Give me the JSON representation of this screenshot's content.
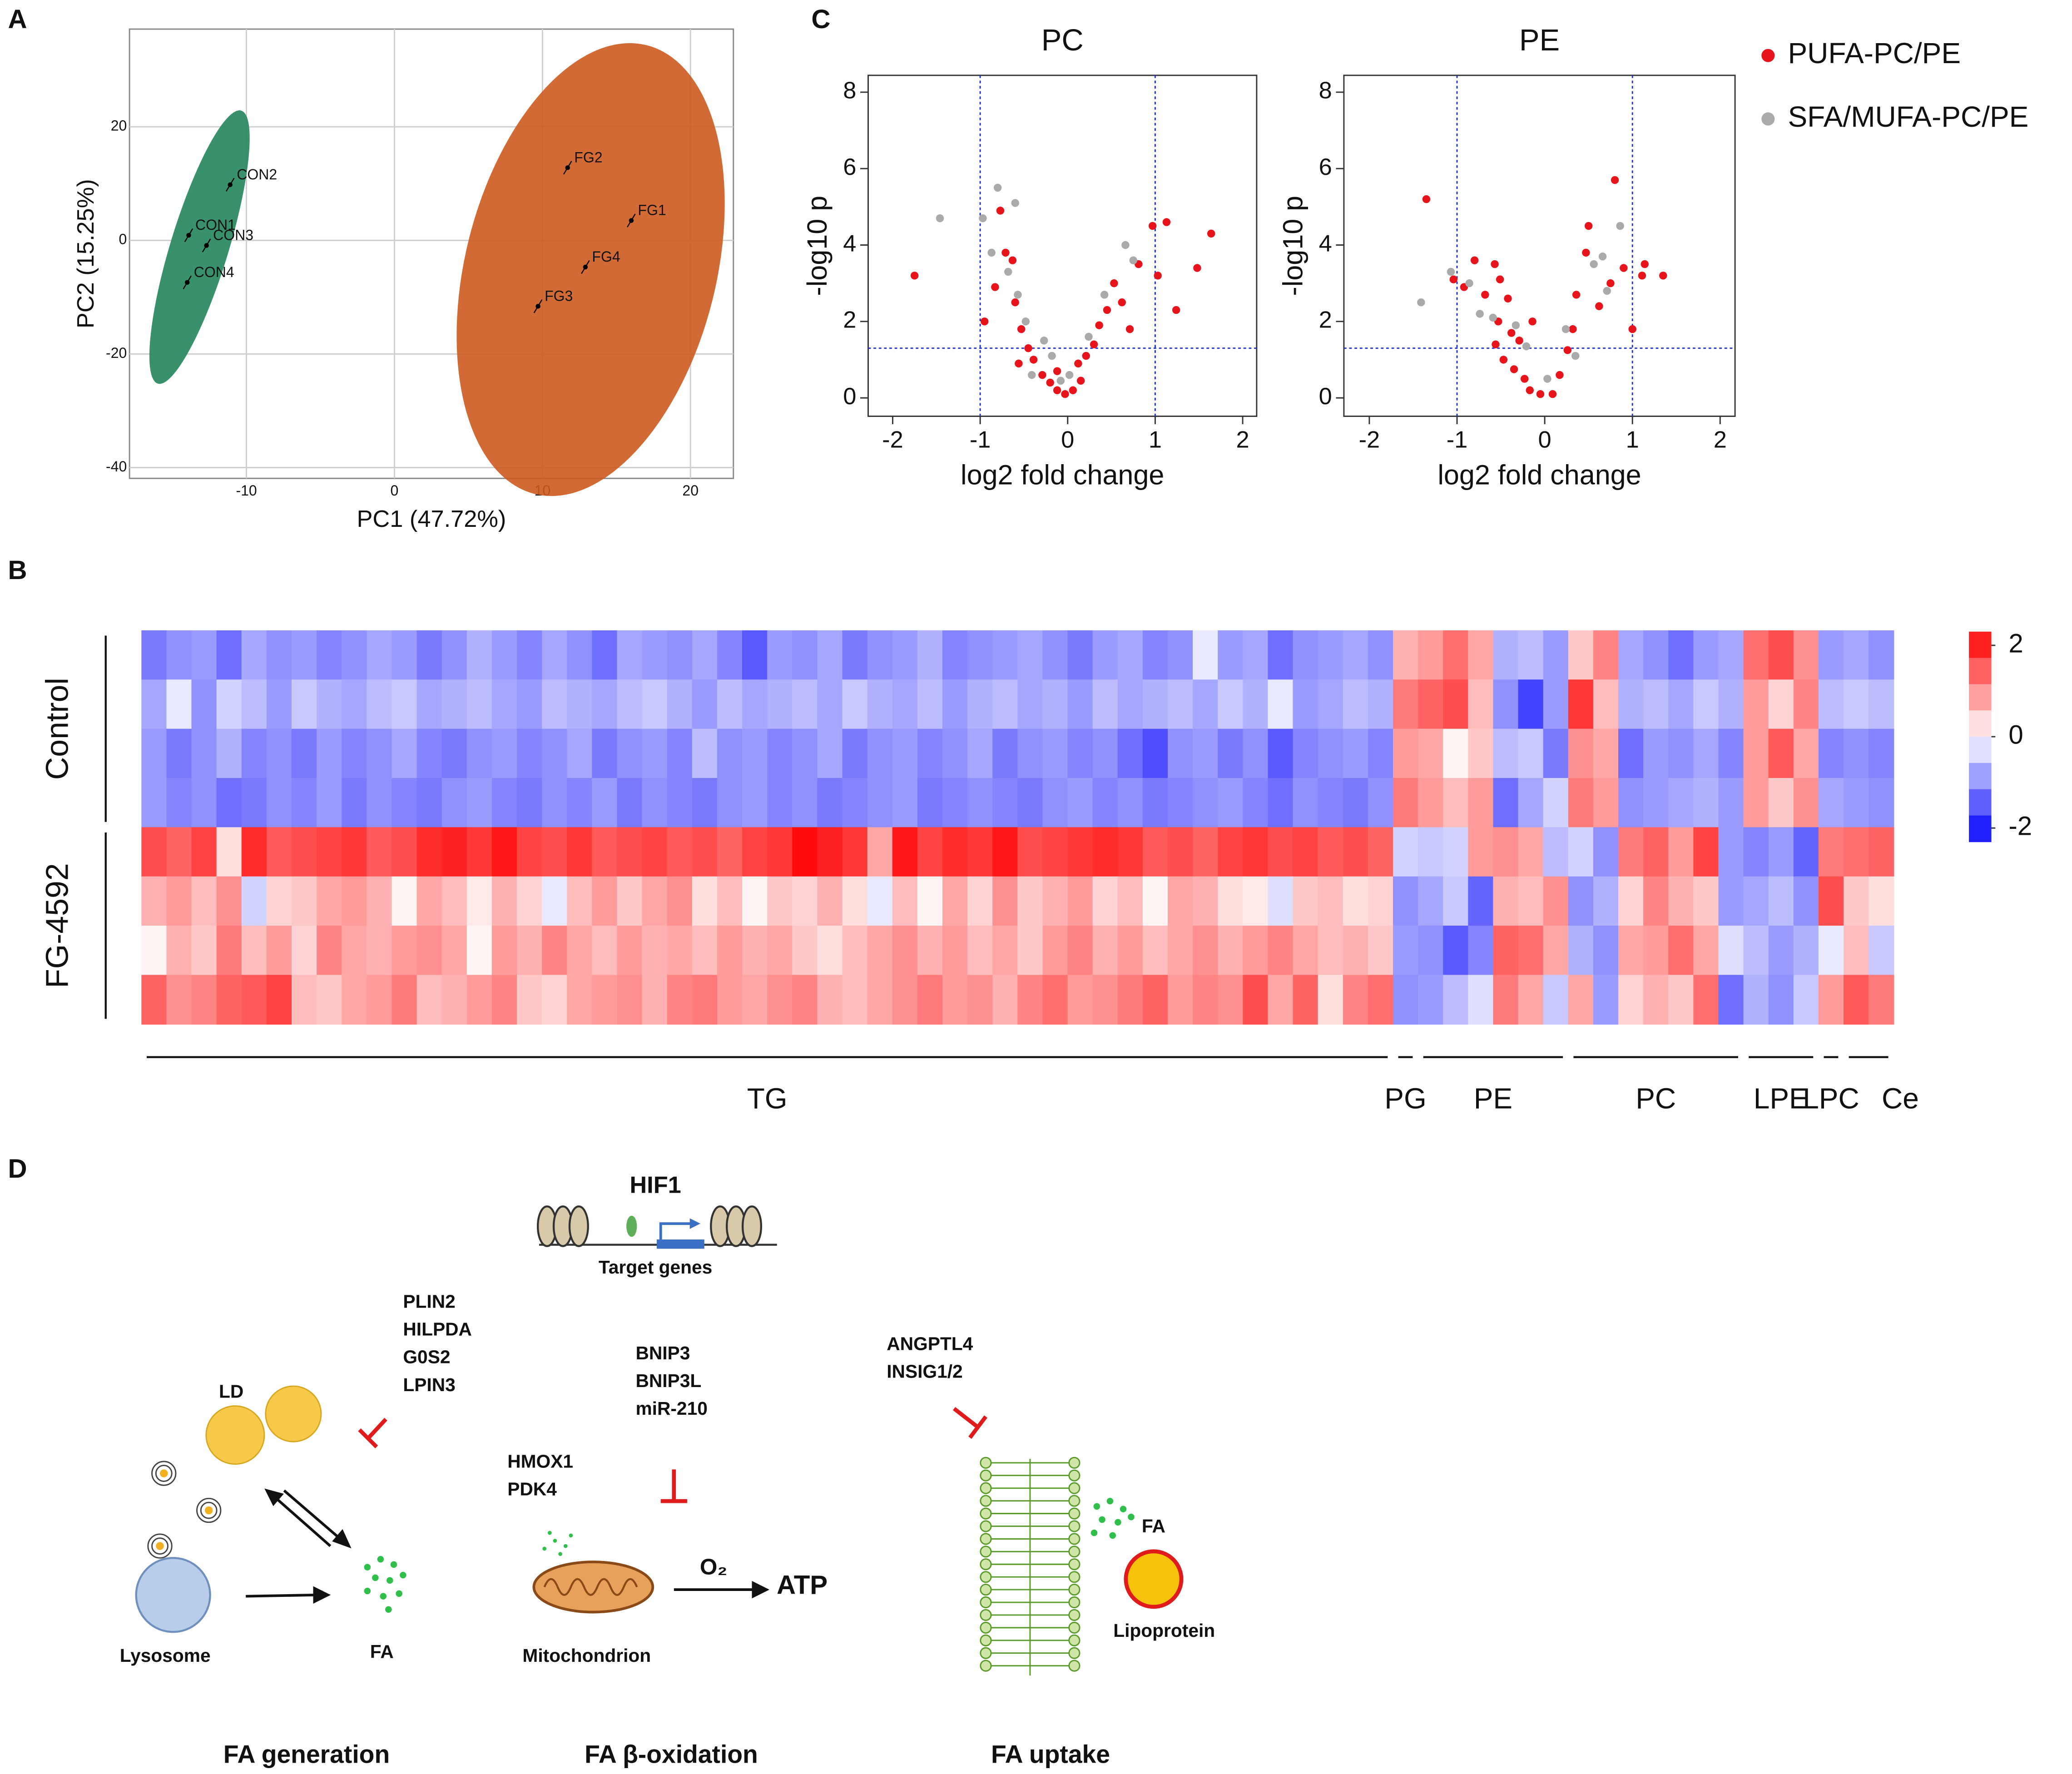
{
  "panel_labels": [
    "A",
    "B",
    "C",
    "D"
  ],
  "chart_data": [
    {
      "type": "scatter",
      "x_label": "PC1 (47.72%)",
      "y_label": "PC2 (15.25%)",
      "labels": [
        "CON1",
        "CON2",
        "CON3",
        "CON4",
        "FG1",
        "FG2",
        "FG3",
        "FG4"
      ],
      "x": [
        -13.9,
        -11.1,
        -12.7,
        -14.0,
        16.0,
        11.7,
        9.7,
        12.9
      ],
      "y": [
        0.9,
        9.8,
        -0.9,
        -7.4,
        3.5,
        12.8,
        -11.6,
        -4.7
      ],
      "color": "#000000",
      "xlim": [
        -17.9,
        22.9
      ],
      "ylim": [
        -41.9,
        37.2
      ],
      "xticks": [
        -10,
        0,
        10,
        20
      ],
      "yticks": [
        -40,
        -20,
        0,
        20
      ],
      "grid": true
    },
    {
      "type": "scatter",
      "title": "PC",
      "x_label": "log2 fold change",
      "y_label": "-log10 p",
      "series": [
        {
          "name": "PUFA-PC/PE",
          "color": "#e8141c",
          "x": [
            -1.75,
            -0.77,
            -0.95,
            -0.71,
            -0.63,
            -0.83,
            -0.6,
            -0.53,
            -0.45,
            -0.39,
            -0.29,
            -0.2,
            -0.12,
            -0.03,
            0.06,
            0.15,
            0.21,
            0.3,
            0.36,
            0.45,
            0.53,
            0.62,
            0.71,
            0.81,
            0.97,
            1.03,
            1.13,
            1.24,
            1.48,
            1.64,
            -0.56,
            -0.12,
            0.12
          ],
          "y": [
            3.2,
            4.9,
            2.0,
            3.8,
            3.6,
            2.9,
            2.5,
            1.8,
            1.3,
            1.0,
            0.6,
            0.4,
            0.2,
            0.1,
            0.2,
            0.45,
            1.1,
            1.4,
            1.9,
            2.3,
            3.0,
            2.5,
            1.8,
            3.5,
            4.5,
            3.2,
            4.6,
            2.3,
            3.4,
            4.3,
            0.9,
            0.7,
            0.9
          ]
        },
        {
          "name": "SFA/MUFA-PC/PE",
          "color": "#aaaaaa",
          "x": [
            -1.46,
            -0.97,
            -0.8,
            -0.6,
            -0.87,
            -0.68,
            -0.57,
            -0.48,
            -0.27,
            -0.18,
            0.02,
            0.24,
            0.42,
            0.66,
            0.75,
            -0.08,
            -0.41
          ],
          "y": [
            4.7,
            4.7,
            5.5,
            5.1,
            3.8,
            3.3,
            2.7,
            2.0,
            1.5,
            1.1,
            0.6,
            1.6,
            2.7,
            4.0,
            3.6,
            0.45,
            0.6
          ]
        }
      ],
      "vlines": [
        -1,
        1
      ],
      "hline": 1.3,
      "xlim": [
        -2.28,
        2.16
      ],
      "ylim": [
        -0.48,
        8.44
      ],
      "xticks": [
        -2,
        -1,
        0,
        1,
        2
      ],
      "yticks": [
        0,
        2,
        4,
        6,
        8
      ],
      "grid": false
    },
    {
      "type": "scatter",
      "title": "PE",
      "x_label": "log2 fold change",
      "y_label": "-log10 p",
      "series": [
        {
          "color": "#e8141c",
          "x": [
            -1.35,
            -1.04,
            -0.8,
            -0.57,
            -0.92,
            -0.68,
            -0.51,
            -0.42,
            -0.53,
            -0.38,
            -0.56,
            -0.47,
            -0.35,
            -0.23,
            -0.17,
            -0.05,
            0.09,
            0.17,
            0.26,
            0.32,
            0.36,
            0.47,
            0.5,
            0.62,
            0.8,
            0.75,
            0.9,
            1.0,
            1.11,
            1.14,
            1.35,
            -0.14,
            -0.29
          ],
          "y": [
            5.2,
            3.1,
            3.6,
            3.5,
            2.9,
            2.7,
            3.1,
            2.6,
            2.0,
            1.7,
            1.4,
            1.0,
            0.75,
            0.5,
            0.2,
            0.1,
            0.1,
            0.6,
            1.25,
            1.8,
            2.7,
            3.8,
            4.5,
            2.4,
            5.7,
            3.0,
            3.4,
            1.8,
            3.2,
            3.5,
            3.2,
            2.0,
            1.5
          ]
        },
        {
          "color": "#aaaaaa",
          "x": [
            -1.41,
            -1.07,
            -0.86,
            -0.74,
            -0.59,
            -0.33,
            -0.21,
            0.03,
            0.24,
            0.56,
            0.66,
            0.86,
            0.71,
            0.35
          ],
          "y": [
            2.5,
            3.3,
            3.0,
            2.2,
            2.1,
            1.9,
            1.35,
            0.5,
            1.8,
            3.5,
            3.7,
            4.5,
            2.8,
            1.1
          ]
        }
      ],
      "vlines": [
        -1,
        1
      ],
      "hline": 1.3,
      "xlim": [
        -2.29,
        2.17
      ],
      "ylim": [
        -0.48,
        8.44
      ],
      "xticks": [
        -2,
        -1,
        0,
        1,
        2
      ],
      "yticks": [
        0,
        2,
        4,
        6,
        8
      ],
      "grid": false
    },
    {
      "type": "heatmap",
      "row_groups": [
        {
          "label": "Control",
          "count": 4
        },
        {
          "label": "FG-4592",
          "count": 4
        }
      ],
      "groups": [
        {
          "label": "TG",
          "count": 50
        },
        {
          "label": "PG",
          "count": 1
        },
        {
          "label": "PE",
          "count": 6
        },
        {
          "label": "PC",
          "count": 7
        },
        {
          "label": "LPE",
          "count": 3
        },
        {
          "label": "LPC",
          "count": 1
        },
        {
          "label": "Ce",
          "count": 2
        }
      ],
      "colors": [
        "#0000ff",
        "#ffffff",
        "#ff0000"
      ],
      "zlim": [
        -2.3,
        2.3
      ],
      "zticks": [
        2,
        0,
        -2
      ],
      "values": [
        [
          -1.2,
          -1.0,
          -0.9,
          -1.3,
          -0.8,
          -1.0,
          -0.9,
          -1.1,
          -1.0,
          -0.8,
          -0.9,
          -1.2,
          -1.0,
          -0.7,
          -0.9,
          -1.1,
          -0.8,
          -1.0,
          -1.3,
          -0.8,
          -0.9,
          -1.0,
          -0.8,
          -1.1,
          -1.5,
          -0.9,
          -1.0,
          -0.8,
          -1.2,
          -1.0,
          -0.9,
          -0.7,
          -1.1,
          -1.0,
          -0.9,
          -0.8,
          -1.0,
          -1.2,
          -0.9,
          -0.8,
          -1.1,
          -1.0,
          -0.2,
          -0.9,
          -0.8,
          -1.3,
          -1.0,
          -0.9,
          -0.8,
          -1.0,
          0.7,
          0.9,
          1.3,
          0.8,
          -0.7,
          -0.6,
          -0.9,
          0.5,
          1.1,
          -0.8,
          -1.0,
          -1.3,
          -0.9,
          -0.8,
          1.3,
          1.6,
          1.0,
          -0.9,
          -0.8,
          -1.0
        ],
        [
          -0.8,
          -0.2,
          -1.0,
          -0.4,
          -0.6,
          -0.9,
          -0.5,
          -0.7,
          -0.8,
          -0.6,
          -0.5,
          -0.8,
          -0.7,
          -0.6,
          -0.8,
          -0.9,
          -0.6,
          -0.7,
          -0.8,
          -0.6,
          -0.5,
          -0.7,
          -0.9,
          -0.6,
          -0.8,
          -0.7,
          -0.6,
          -0.8,
          -0.5,
          -0.7,
          -0.8,
          -0.6,
          -0.9,
          -0.7,
          -0.6,
          -0.8,
          -0.7,
          -0.9,
          -0.6,
          -0.8,
          -0.7,
          -0.6,
          -0.8,
          -0.5,
          -0.7,
          -0.2,
          -0.9,
          -0.8,
          -0.6,
          -0.7,
          1.2,
          1.4,
          1.6,
          0.6,
          -1.0,
          -1.7,
          -0.9,
          1.8,
          0.6,
          -0.7,
          -0.6,
          -0.8,
          -0.5,
          -0.7,
          0.9,
          0.4,
          1.1,
          -0.6,
          -0.5,
          -0.6
        ],
        [
          -0.9,
          -1.2,
          -1.0,
          -0.7,
          -1.1,
          -1.0,
          -1.2,
          -0.9,
          -1.1,
          -1.0,
          -0.8,
          -1.1,
          -1.2,
          -1.0,
          -0.9,
          -1.1,
          -1.0,
          -0.8,
          -1.2,
          -1.0,
          -0.9,
          -1.1,
          -0.6,
          -1.0,
          -0.9,
          -1.1,
          -1.0,
          -0.8,
          -1.2,
          -1.0,
          -0.9,
          -1.1,
          -1.0,
          -0.8,
          -1.2,
          -1.0,
          -0.9,
          -1.1,
          -1.0,
          -1.3,
          -1.6,
          -1.0,
          -0.9,
          -1.2,
          -1.0,
          -1.5,
          -1.1,
          -1.0,
          -0.9,
          -1.1,
          0.9,
          0.8,
          0.1,
          0.5,
          -0.6,
          -0.5,
          -1.2,
          1.0,
          0.8,
          -1.3,
          -0.9,
          -1.0,
          -0.8,
          -1.1,
          0.9,
          1.5,
          0.8,
          -1.1,
          -1.0,
          -1.1
        ],
        [
          -0.9,
          -1.1,
          -1.0,
          -1.3,
          -1.2,
          -1.0,
          -1.1,
          -0.9,
          -1.2,
          -1.0,
          -1.1,
          -1.2,
          -1.0,
          -0.9,
          -1.1,
          -1.2,
          -1.0,
          -1.1,
          -0.9,
          -1.2,
          -1.0,
          -1.1,
          -1.2,
          -1.0,
          -0.9,
          -1.1,
          -1.0,
          -1.2,
          -1.1,
          -1.0,
          -0.9,
          -1.2,
          -1.1,
          -1.0,
          -1.1,
          -1.2,
          -1.0,
          -0.9,
          -1.1,
          -1.0,
          -1.2,
          -1.1,
          -1.0,
          -0.9,
          -1.1,
          -1.3,
          -1.0,
          -1.1,
          -1.2,
          -1.0,
          1.2,
          0.9,
          0.6,
          0.9,
          -1.3,
          -0.8,
          -0.4,
          1.2,
          0.9,
          -1.0,
          -0.9,
          -0.8,
          -0.7,
          -0.9,
          0.9,
          0.5,
          1.0,
          -0.8,
          -0.9,
          -1.0
        ],
        [
          1.6,
          1.4,
          1.7,
          0.3,
          1.9,
          1.5,
          1.6,
          1.7,
          1.8,
          1.5,
          1.6,
          1.9,
          2.0,
          1.8,
          2.1,
          1.7,
          1.6,
          1.8,
          1.5,
          1.6,
          1.7,
          1.5,
          1.6,
          1.4,
          1.7,
          1.8,
          2.2,
          2.0,
          1.8,
          0.8,
          2.1,
          1.7,
          1.9,
          1.8,
          2.1,
          1.6,
          1.7,
          1.8,
          1.9,
          1.8,
          1.5,
          1.6,
          1.4,
          1.7,
          1.8,
          1.6,
          1.7,
          1.5,
          1.6,
          1.4,
          -0.4,
          -0.5,
          -0.4,
          0.9,
          1.0,
          0.8,
          -0.6,
          -0.4,
          -1.0,
          1.2,
          1.4,
          0.9,
          1.7,
          -0.9,
          -1.1,
          -0.9,
          -1.4,
          1.2,
          1.3,
          1.4
        ],
        [
          0.7,
          0.9,
          0.6,
          1.0,
          -0.4,
          0.4,
          0.5,
          0.8,
          0.9,
          0.7,
          0.1,
          0.8,
          0.6,
          0.2,
          0.7,
          0.4,
          -0.2,
          0.6,
          0.9,
          0.5,
          0.8,
          1.0,
          0.3,
          0.6,
          0.1,
          0.5,
          0.4,
          0.7,
          0.3,
          -0.2,
          0.6,
          0.1,
          0.8,
          0.4,
          1.0,
          0.5,
          0.7,
          0.9,
          0.4,
          0.6,
          0.1,
          0.8,
          0.7,
          0.3,
          0.2,
          -0.3,
          0.5,
          0.6,
          0.3,
          0.4,
          -1.0,
          -0.8,
          -0.5,
          -1.4,
          0.7,
          0.6,
          1.0,
          -1.0,
          -0.7,
          0.4,
          1.1,
          0.7,
          0.5,
          -0.9,
          -0.8,
          -0.6,
          -1.0,
          1.6,
          0.5,
          0.3
        ],
        [
          0.1,
          0.7,
          0.5,
          1.2,
          0.6,
          0.9,
          0.4,
          1.1,
          0.8,
          0.7,
          0.9,
          1.0,
          0.8,
          0.1,
          0.9,
          0.7,
          1.1,
          0.8,
          0.6,
          0.9,
          0.7,
          0.8,
          0.6,
          0.9,
          0.7,
          0.8,
          0.5,
          0.3,
          0.6,
          0.8,
          1.0,
          0.7,
          0.9,
          0.6,
          0.8,
          0.5,
          0.9,
          1.1,
          0.7,
          0.9,
          0.6,
          0.8,
          1.0,
          0.7,
          0.9,
          1.1,
          0.8,
          0.6,
          0.7,
          0.5,
          -0.9,
          -1.0,
          -1.5,
          -1.1,
          1.4,
          1.3,
          0.8,
          -0.7,
          -1.0,
          0.8,
          0.9,
          1.3,
          0.8,
          -0.3,
          -0.6,
          -0.9,
          -0.7,
          -0.2,
          0.6,
          -0.5
        ],
        [
          1.4,
          1.0,
          1.1,
          1.4,
          1.5,
          1.7,
          0.6,
          0.5,
          0.8,
          0.9,
          1.2,
          0.6,
          0.7,
          0.9,
          1.1,
          0.5,
          0.4,
          0.8,
          0.9,
          1.0,
          0.7,
          1.1,
          1.2,
          0.9,
          0.8,
          1.0,
          1.1,
          0.7,
          0.6,
          0.8,
          1.0,
          1.2,
          0.9,
          1.0,
          0.7,
          1.1,
          1.3,
          0.9,
          1.0,
          1.2,
          1.4,
          0.9,
          1.1,
          1.0,
          1.6,
          0.8,
          1.4,
          0.3,
          1.1,
          1.3,
          -1.0,
          -0.9,
          -0.6,
          -0.3,
          1.2,
          0.8,
          -0.5,
          0.8,
          -0.9,
          0.4,
          0.7,
          0.5,
          1.3,
          -1.3,
          -0.7,
          -1.0,
          -0.5,
          0.9,
          1.5,
          1.2
        ]
      ]
    }
  ],
  "diagram": {
    "hif": "HIF1",
    "target": "Target genes",
    "gen_genes": [
      "PLIN2",
      "HILPDA",
      "G0S2",
      "LPIN3"
    ],
    "ox_genes_a": [
      "BNIP3",
      "BNIP3L",
      "miR-210"
    ],
    "ox_genes_b": [
      "HMOX1",
      "PDK4"
    ],
    "up_genes": [
      "ANGPTL4",
      "INSIG1/2"
    ],
    "ld": "LD",
    "lysosome": "Lysosome",
    "fa1": "FA",
    "mito": "Mitochondrion",
    "o2": "O₂",
    "atp": "ATP",
    "fa2": "FA",
    "lipoprotein": "Lipoprotein",
    "captions": [
      "FA generation",
      "FA β-oxidation",
      "FA uptake"
    ]
  }
}
